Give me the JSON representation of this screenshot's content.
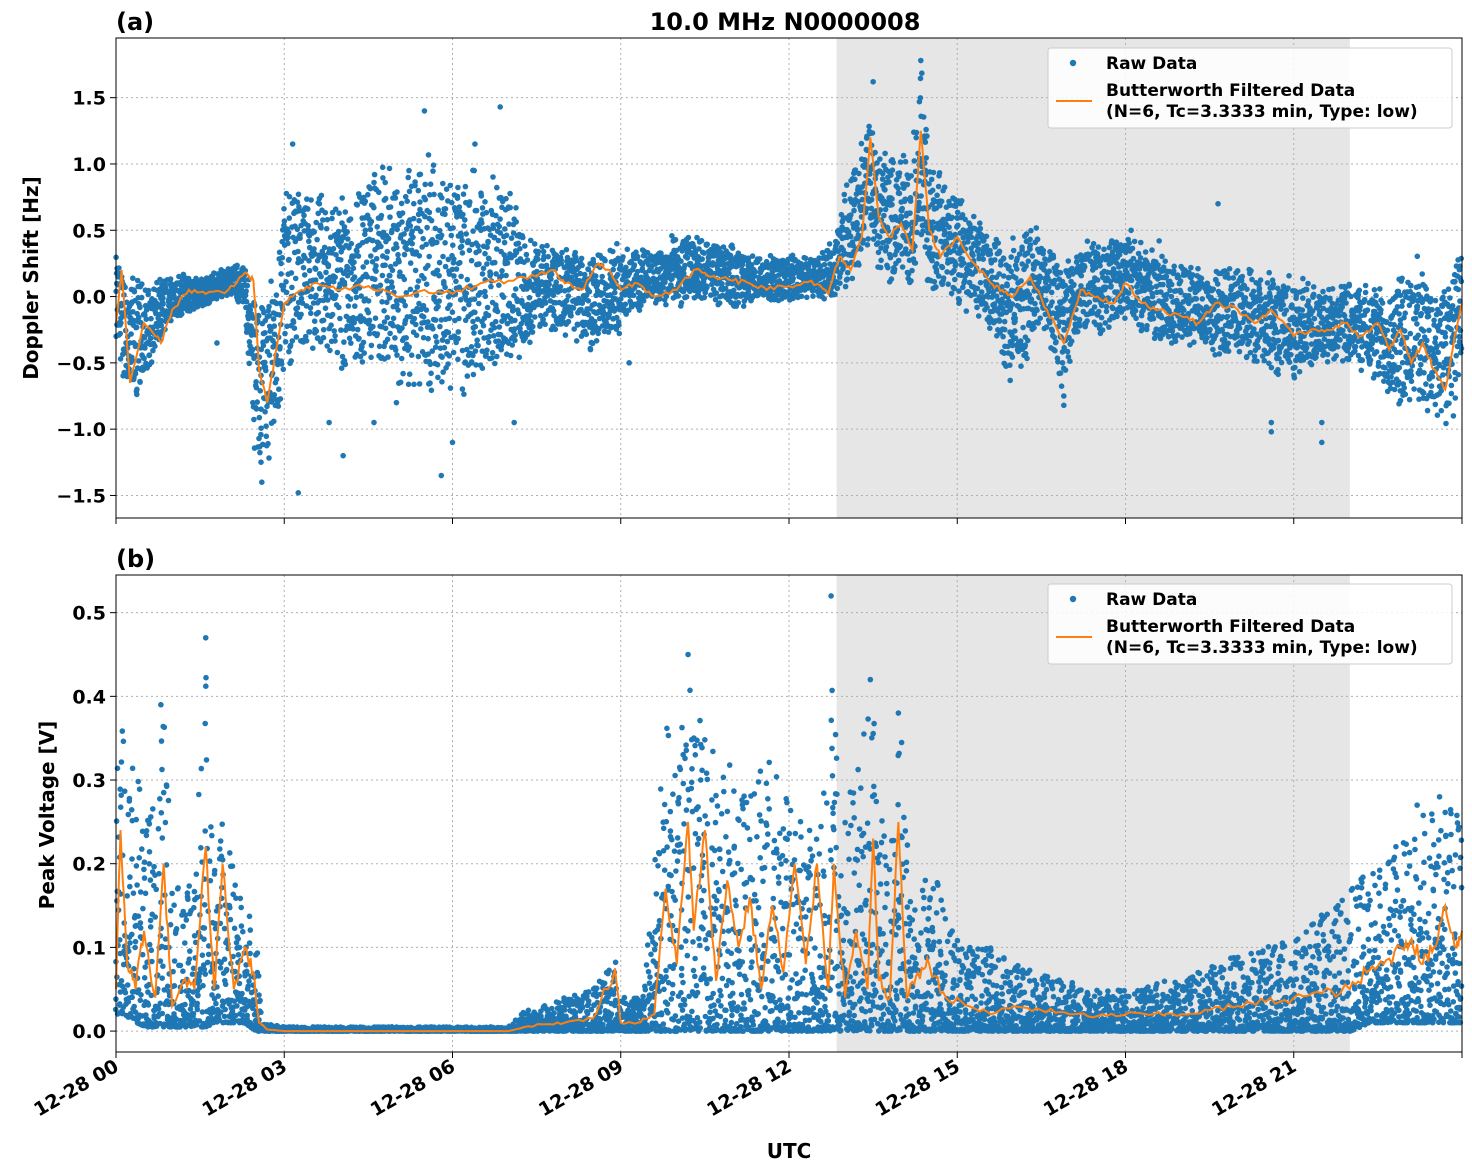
{
  "title": "10.0 MHz N0000008",
  "xlabel": "UTC",
  "x_tick_labels": [
    "12-28 00",
    "12-28 03",
    "12-28 06",
    "12-28 09",
    "12-28 12",
    "12-28 15",
    "12-28 18",
    "12-28 21"
  ],
  "colors": {
    "raw": "#1f77b4",
    "filtered": "#ff7f0e",
    "shade": "#e6e6e6"
  },
  "legend": {
    "raw": "Raw Data",
    "filtered_line1": "Butterworth Filtered Data",
    "filtered_line2": "(N=6, Tc=3.3333 min, Type: low)",
    "location": "upper right"
  },
  "chart_data": [
    {
      "type": "scatter+line",
      "panel_label": "(a)",
      "title": "10.0 MHz N0000008",
      "ylabel": "Doppler Shift [Hz]",
      "xlabel": "",
      "x_unit": "hours UTC on 12-28",
      "xlim": [
        0,
        24
      ],
      "ylim": [
        -1.67,
        1.95
      ],
      "y_ticks": [
        -1.5,
        -1.0,
        -0.5,
        0.0,
        0.5,
        1.0,
        1.5
      ],
      "y_tick_labels": [
        "−1.5",
        "−1.0",
        "−0.5",
        "0.0",
        "0.5",
        "1.0",
        "1.5"
      ],
      "grid": true,
      "shaded_span": [
        12.85,
        22.0
      ],
      "filtered": {
        "x": [
          0,
          0.1,
          0.25,
          0.5,
          0.8,
          1.0,
          1.3,
          1.6,
          2.0,
          2.3,
          2.45,
          2.55,
          2.7,
          2.9,
          3.0,
          3.3,
          3.6,
          4.0,
          4.5,
          5.0,
          5.5,
          6.0,
          6.5,
          7.0,
          7.5,
          7.8,
          8.0,
          8.3,
          8.6,
          8.8,
          9.0,
          9.3,
          9.6,
          10.0,
          10.3,
          10.6,
          11.0,
          11.3,
          11.6,
          12.0,
          12.4,
          12.7,
          12.9,
          13.1,
          13.3,
          13.45,
          13.6,
          13.8,
          14.0,
          14.2,
          14.35,
          14.5,
          14.7,
          15.0,
          15.3,
          15.6,
          15.8,
          16.0,
          16.3,
          16.6,
          16.9,
          17.2,
          17.5,
          17.8,
          18.0,
          18.3,
          18.6,
          19.0,
          19.3,
          19.6,
          20.0,
          20.3,
          20.6,
          21.0,
          21.3,
          21.6,
          21.9,
          22.2,
          22.5,
          22.7,
          22.9,
          23.1,
          23.3,
          23.5,
          23.7,
          23.85,
          24.0
        ],
        "y": [
          -0.2,
          0.2,
          -0.65,
          -0.2,
          -0.35,
          -0.1,
          0.05,
          0.02,
          0.05,
          0.18,
          0.12,
          -0.55,
          -0.8,
          -0.3,
          -0.05,
          0.05,
          0.1,
          0.05,
          0.08,
          0.0,
          0.05,
          0.02,
          0.1,
          0.12,
          0.15,
          0.2,
          0.1,
          0.05,
          0.25,
          0.2,
          0.05,
          0.1,
          0.0,
          0.05,
          0.2,
          0.15,
          0.12,
          0.1,
          0.05,
          0.08,
          0.12,
          0.02,
          0.3,
          0.2,
          0.45,
          1.2,
          0.6,
          0.45,
          0.55,
          0.35,
          1.25,
          0.5,
          0.3,
          0.45,
          0.25,
          0.1,
          0.05,
          0.0,
          0.15,
          -0.1,
          -0.35,
          0.05,
          0.0,
          -0.05,
          0.1,
          -0.05,
          -0.1,
          -0.15,
          -0.2,
          -0.05,
          -0.1,
          -0.2,
          -0.1,
          -0.3,
          -0.25,
          -0.25,
          -0.2,
          -0.3,
          -0.2,
          -0.4,
          -0.25,
          -0.5,
          -0.35,
          -0.55,
          -0.7,
          -0.35,
          -0.05
        ]
      },
      "raw_bands": [
        [
          0.0,
          -0.45,
          0.35
        ],
        [
          0.3,
          -1.0,
          0.2
        ],
        [
          0.6,
          -0.55,
          0.1
        ],
        [
          1.0,
          -0.2,
          0.2
        ],
        [
          1.5,
          -0.1,
          0.15
        ],
        [
          2.0,
          0.0,
          0.25
        ],
        [
          2.3,
          -0.1,
          0.25
        ],
        [
          2.5,
          -1.5,
          0.1
        ],
        [
          2.7,
          -1.3,
          0.2
        ],
        [
          2.9,
          -1.0,
          0.35
        ],
        [
          3.0,
          -0.6,
          0.95
        ],
        [
          3.5,
          -0.5,
          0.8
        ],
        [
          4.0,
          -0.6,
          0.85
        ],
        [
          4.5,
          -0.6,
          1.0
        ],
        [
          5.0,
          -0.8,
          1.1
        ],
        [
          5.5,
          -0.8,
          1.1
        ],
        [
          6.0,
          -0.8,
          1.05
        ],
        [
          6.5,
          -0.7,
          1.0
        ],
        [
          7.0,
          -0.6,
          0.9
        ],
        [
          7.3,
          -0.4,
          0.5
        ],
        [
          7.6,
          -0.3,
          0.45
        ],
        [
          8.0,
          -0.3,
          0.4
        ],
        [
          8.5,
          -0.45,
          0.35
        ],
        [
          9.0,
          -0.3,
          0.45
        ],
        [
          9.5,
          -0.05,
          0.35
        ],
        [
          10.0,
          -0.1,
          0.5
        ],
        [
          10.5,
          -0.05,
          0.45
        ],
        [
          11.0,
          -0.1,
          0.4
        ],
        [
          11.5,
          -0.05,
          0.3
        ],
        [
          12.0,
          -0.05,
          0.35
        ],
        [
          12.5,
          0.0,
          0.3
        ],
        [
          12.8,
          -0.05,
          0.45
        ],
        [
          13.0,
          0.0,
          0.9
        ],
        [
          13.3,
          0.2,
          1.2
        ],
        [
          13.45,
          0.4,
          1.65
        ],
        [
          13.6,
          0.1,
          1.2
        ],
        [
          13.9,
          0.05,
          1.1
        ],
        [
          14.2,
          0.0,
          1.2
        ],
        [
          14.35,
          0.3,
          1.75
        ],
        [
          14.5,
          0.0,
          1.1
        ],
        [
          14.8,
          -0.05,
          0.9
        ],
        [
          15.0,
          -0.1,
          0.8
        ],
        [
          15.5,
          -0.2,
          0.6
        ],
        [
          15.8,
          -0.55,
          0.4
        ],
        [
          16.0,
          -0.7,
          0.5
        ],
        [
          16.5,
          -0.25,
          0.55
        ],
        [
          16.9,
          -0.75,
          0.3
        ],
        [
          17.2,
          -0.25,
          0.45
        ],
        [
          17.6,
          -0.3,
          0.45
        ],
        [
          18.0,
          -0.2,
          0.5
        ],
        [
          18.5,
          -0.35,
          0.35
        ],
        [
          19.0,
          -0.4,
          0.3
        ],
        [
          19.5,
          -0.45,
          0.25
        ],
        [
          20.0,
          -0.5,
          0.25
        ],
        [
          20.5,
          -0.6,
          0.2
        ],
        [
          21.0,
          -0.65,
          0.2
        ],
        [
          21.5,
          -0.55,
          0.1
        ],
        [
          22.0,
          -0.5,
          0.15
        ],
        [
          22.5,
          -0.7,
          0.1
        ],
        [
          22.9,
          -0.9,
          0.2
        ],
        [
          23.2,
          -0.8,
          0.35
        ],
        [
          23.5,
          -1.0,
          0.1
        ],
        [
          23.8,
          -1.05,
          0.2
        ],
        [
          24.0,
          -0.5,
          0.45
        ]
      ],
      "raw_outliers": [
        [
          1.8,
          -0.35
        ],
        [
          4.05,
          -1.2
        ],
        [
          5.5,
          1.4
        ],
        [
          6.85,
          1.43
        ],
        [
          6.4,
          1.15
        ],
        [
          6.0,
          -1.1
        ],
        [
          5.8,
          -1.35
        ],
        [
          7.1,
          -0.95
        ],
        [
          9.15,
          -0.5
        ],
        [
          13.5,
          1.62
        ],
        [
          14.35,
          1.78
        ],
        [
          16.9,
          -0.75
        ],
        [
          16.9,
          -0.82
        ],
        [
          18.1,
          0.5
        ],
        [
          18.6,
          0.42
        ],
        [
          19.65,
          0.7
        ],
        [
          20.6,
          -0.95
        ],
        [
          20.6,
          -1.02
        ],
        [
          21.5,
          -0.95
        ],
        [
          21.5,
          -1.1
        ],
        [
          3.8,
          -0.95
        ],
        [
          4.6,
          -0.95
        ],
        [
          5.0,
          -0.8
        ],
        [
          3.25,
          -1.48
        ],
        [
          2.6,
          -1.4
        ],
        [
          3.15,
          1.15
        ]
      ]
    },
    {
      "type": "scatter+line",
      "panel_label": "(b)",
      "title": "",
      "ylabel": "Peak Voltage [V]",
      "xlabel": "UTC",
      "x_unit": "hours UTC on 12-28",
      "xlim": [
        0,
        24
      ],
      "ylim": [
        -0.025,
        0.545
      ],
      "y_ticks": [
        0.0,
        0.1,
        0.2,
        0.3,
        0.4,
        0.5
      ],
      "y_tick_labels": [
        "0.0",
        "0.1",
        "0.2",
        "0.3",
        "0.4",
        "0.5"
      ],
      "grid": true,
      "shaded_span": [
        12.85,
        22.0
      ],
      "filtered": {
        "x": [
          0,
          0.08,
          0.2,
          0.35,
          0.5,
          0.7,
          0.85,
          1.0,
          1.2,
          1.4,
          1.6,
          1.75,
          1.9,
          2.1,
          2.3,
          2.45,
          2.55,
          2.7,
          3.0,
          4.0,
          5.0,
          6.0,
          7.0,
          7.3,
          7.6,
          8.0,
          8.5,
          8.9,
          9.0,
          9.3,
          9.6,
          9.8,
          10.0,
          10.2,
          10.3,
          10.5,
          10.7,
          10.9,
          11.1,
          11.3,
          11.5,
          11.7,
          11.9,
          12.1,
          12.3,
          12.5,
          12.7,
          12.8,
          13.0,
          13.2,
          13.4,
          13.5,
          13.6,
          13.8,
          13.95,
          14.1,
          14.3,
          14.5,
          14.8,
          15.2,
          15.6,
          16.0,
          16.5,
          17.0,
          17.5,
          18.0,
          18.5,
          19.0,
          19.5,
          20.0,
          20.5,
          21.0,
          21.5,
          22.0,
          22.3,
          22.6,
          22.9,
          23.1,
          23.3,
          23.5,
          23.7,
          23.9,
          24.0
        ],
        "y": [
          0.05,
          0.24,
          0.08,
          0.05,
          0.12,
          0.04,
          0.2,
          0.03,
          0.06,
          0.05,
          0.22,
          0.05,
          0.2,
          0.05,
          0.1,
          0.07,
          0.01,
          0.002,
          0.0,
          0.0,
          0.0,
          0.0,
          0.0,
          0.005,
          0.008,
          0.01,
          0.015,
          0.075,
          0.01,
          0.01,
          0.02,
          0.17,
          0.08,
          0.25,
          0.12,
          0.24,
          0.06,
          0.18,
          0.1,
          0.16,
          0.05,
          0.15,
          0.07,
          0.2,
          0.08,
          0.2,
          0.05,
          0.2,
          0.04,
          0.12,
          0.05,
          0.23,
          0.06,
          0.04,
          0.25,
          0.04,
          0.07,
          0.08,
          0.04,
          0.03,
          0.02,
          0.03,
          0.025,
          0.02,
          0.018,
          0.02,
          0.02,
          0.02,
          0.025,
          0.03,
          0.035,
          0.04,
          0.045,
          0.05,
          0.07,
          0.08,
          0.1,
          0.11,
          0.08,
          0.1,
          0.15,
          0.1,
          0.12
        ]
      },
      "raw_bands": [
        [
          0.0,
          0.02,
          0.43
        ],
        [
          0.15,
          0.02,
          0.35
        ],
        [
          0.35,
          0.01,
          0.32
        ],
        [
          0.55,
          0.005,
          0.25
        ],
        [
          0.75,
          0.005,
          0.3
        ],
        [
          0.85,
          0.005,
          0.4
        ],
        [
          1.0,
          0.005,
          0.2
        ],
        [
          1.2,
          0.005,
          0.15
        ],
        [
          1.4,
          0.005,
          0.2
        ],
        [
          1.6,
          0.005,
          0.47
        ],
        [
          1.75,
          0.01,
          0.2
        ],
        [
          1.9,
          0.01,
          0.25
        ],
        [
          2.1,
          0.01,
          0.2
        ],
        [
          2.3,
          0.01,
          0.15
        ],
        [
          2.5,
          0.0,
          0.12
        ],
        [
          2.6,
          0.0,
          0.01
        ],
        [
          3.0,
          0.0,
          0.005
        ],
        [
          7.0,
          0.0,
          0.005
        ],
        [
          7.3,
          0.0,
          0.025
        ],
        [
          7.6,
          0.0,
          0.03
        ],
        [
          8.0,
          0.0,
          0.04
        ],
        [
          8.5,
          0.0,
          0.05
        ],
        [
          8.9,
          0.0,
          0.085
        ],
        [
          9.1,
          0.0,
          0.03
        ],
        [
          9.4,
          0.0,
          0.05
        ],
        [
          9.6,
          0.0,
          0.2
        ],
        [
          9.8,
          0.0,
          0.38
        ],
        [
          10.0,
          0.0,
          0.3
        ],
        [
          10.2,
          0.0,
          0.45
        ],
        [
          10.4,
          0.0,
          0.38
        ],
        [
          10.6,
          0.0,
          0.35
        ],
        [
          10.8,
          0.0,
          0.3
        ],
        [
          11.0,
          0.0,
          0.33
        ],
        [
          11.2,
          0.0,
          0.3
        ],
        [
          11.4,
          0.0,
          0.3
        ],
        [
          11.6,
          0.0,
          0.33
        ],
        [
          11.8,
          0.0,
          0.3
        ],
        [
          12.0,
          0.0,
          0.28
        ],
        [
          12.2,
          0.0,
          0.25
        ],
        [
          12.4,
          0.0,
          0.28
        ],
        [
          12.6,
          0.0,
          0.25
        ],
        [
          12.75,
          0.0,
          0.52
        ],
        [
          12.9,
          0.0,
          0.25
        ],
        [
          13.1,
          0.0,
          0.3
        ],
        [
          13.3,
          0.0,
          0.35
        ],
        [
          13.45,
          0.0,
          0.42
        ],
        [
          13.6,
          0.0,
          0.3
        ],
        [
          13.8,
          0.0,
          0.2
        ],
        [
          14.0,
          0.0,
          0.38
        ],
        [
          14.2,
          0.0,
          0.15
        ],
        [
          14.4,
          0.0,
          0.18
        ],
        [
          14.6,
          0.0,
          0.2
        ],
        [
          14.9,
          0.0,
          0.12
        ],
        [
          15.2,
          0.0,
          0.1
        ],
        [
          15.6,
          0.0,
          0.1
        ],
        [
          16.0,
          0.0,
          0.08
        ],
        [
          16.5,
          0.0,
          0.07
        ],
        [
          17.0,
          0.0,
          0.06
        ],
        [
          17.5,
          0.0,
          0.05
        ],
        [
          18.0,
          0.0,
          0.05
        ],
        [
          18.5,
          0.0,
          0.06
        ],
        [
          19.0,
          0.0,
          0.06
        ],
        [
          19.5,
          0.0,
          0.08
        ],
        [
          20.0,
          0.0,
          0.09
        ],
        [
          20.5,
          0.0,
          0.1
        ],
        [
          21.0,
          0.0,
          0.11
        ],
        [
          21.5,
          0.0,
          0.14
        ],
        [
          22.0,
          0.0,
          0.17
        ],
        [
          22.4,
          0.01,
          0.2
        ],
        [
          22.8,
          0.01,
          0.22
        ],
        [
          23.1,
          0.01,
          0.24
        ],
        [
          23.4,
          0.01,
          0.27
        ],
        [
          23.7,
          0.01,
          0.28
        ],
        [
          24.0,
          0.01,
          0.26
        ]
      ],
      "raw_outliers": [
        [
          1.6,
          0.47
        ],
        [
          0.8,
          0.39
        ],
        [
          10.2,
          0.45
        ],
        [
          12.75,
          0.52
        ],
        [
          13.45,
          0.42
        ],
        [
          13.95,
          0.38
        ],
        [
          23.6,
          0.28
        ],
        [
          23.2,
          0.27
        ]
      ]
    }
  ]
}
